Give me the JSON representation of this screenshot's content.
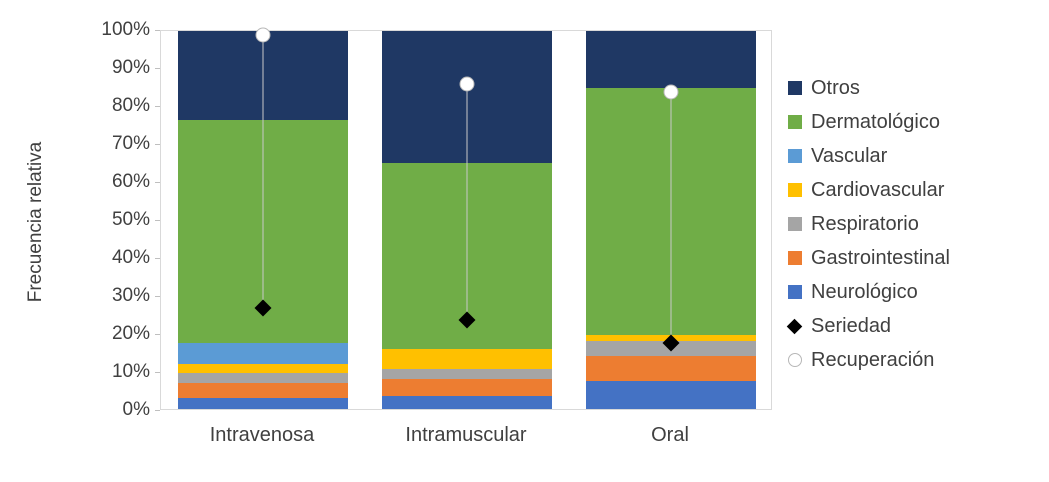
{
  "chart_data": {
    "type": "bar",
    "subtype": "stacked-100",
    "title": "",
    "xlabel": "",
    "ylabel": "Frecuencia relativa",
    "ylim": [
      0,
      100
    ],
    "ytick_step": 10,
    "ytick_suffix": "%",
    "grid": false,
    "legend_position": "right",
    "categories": [
      "Intravenosa",
      "Intramuscular",
      "Oral"
    ],
    "series": [
      {
        "name": "Neurológico",
        "color": "#4472C4",
        "values": [
          3,
          3.5,
          7.5
        ]
      },
      {
        "name": "Gastrointestinal",
        "color": "#ED7D31",
        "values": [
          4,
          4.5,
          6.5
        ]
      },
      {
        "name": "Respiratorio",
        "color": "#A5A5A5",
        "values": [
          2.5,
          2.5,
          4
        ]
      },
      {
        "name": "Cardiovascular",
        "color": "#FFC000",
        "values": [
          2.5,
          5.5,
          1.5
        ]
      },
      {
        "name": "Vascular",
        "color": "#5B9BD5",
        "values": [
          5.5,
          0,
          0
        ]
      },
      {
        "name": "Dermatológico",
        "color": "#70AD47",
        "values": [
          59,
          49,
          65.5
        ]
      },
      {
        "name": "Otros",
        "color": "#1F3864",
        "values": [
          23.5,
          35,
          15
        ]
      }
    ],
    "markers": [
      {
        "name": "Seriedad",
        "shape": "diamond",
        "color": "#000000",
        "values": [
          27,
          24,
          18
        ]
      },
      {
        "name": "Recuperación",
        "shape": "circle",
        "color": "#FFFFFF",
        "values": [
          99,
          86,
          84
        ]
      }
    ],
    "legend": [
      "Otros",
      "Dermatológico",
      "Vascular",
      "Cardiovascular",
      "Respiratorio",
      "Gastrointestinal",
      "Neurológico",
      "Seriedad",
      "Recuperación"
    ]
  },
  "colors": {
    "axis_border": "#D9D9D9",
    "tick_text": "#404040",
    "marker_line": "#C9C9C9"
  }
}
